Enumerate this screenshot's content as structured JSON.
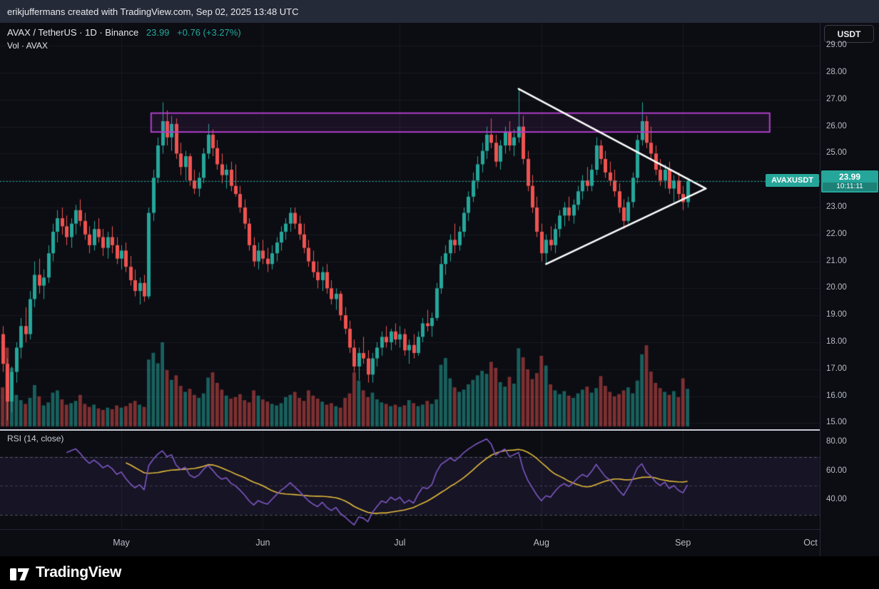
{
  "attribution": {
    "text": "erikjuffermans created with TradingView.com, Sep 02, 2025 13:48 UTC"
  },
  "header": {
    "symbol_line": "AVAX / TetherUS · 1D · Binance",
    "price": "23.99",
    "change": "+0.76 (+3.27%)",
    "vol_label": "Vol · AVAX",
    "currency_button": "USDT"
  },
  "footer": {
    "logo_text": "TradingView"
  },
  "colors": {
    "up": "#26a69a",
    "down": "#ef5350",
    "vol_up": "rgba(38,166,154,0.55)",
    "vol_down": "rgba(239,83,80,0.50)",
    "zone_purple": "#b03fc9",
    "zone_fill": "rgba(176,63,201,0.10)",
    "triangle_white": "#ffffff",
    "rsi_line": "#7e57c2",
    "rsi_ma": "#e3ba3c",
    "grid": "rgba(255,255,255,0.055)",
    "axis_text": "#b9bcc5"
  },
  "chart_data": {
    "type": "candlestick",
    "title": "AVAX / TetherUS · 1D · Binance",
    "symbol": "AVAXUSDT",
    "exchange": "Binance",
    "interval": "1D",
    "start_date": "2025-04-05",
    "end_date": "2025-09-02",
    "current_price": 23.99,
    "current_price_text": "23.99",
    "countdown": "10:11:11",
    "change_text": "+0.76 (+3.27%)",
    "price_axis": {
      "min": 15,
      "max": 29,
      "step": 1,
      "labels": [
        "29.00",
        "28.00",
        "27.00",
        "26.00",
        "25.00",
        "24.00",
        "23.00",
        "22.00",
        "21.00",
        "20.00",
        "19.00",
        "18.00",
        "17.00",
        "16.00",
        "15.00"
      ]
    },
    "time_axis": [
      {
        "label": "May",
        "index": 26
      },
      {
        "label": "Jun",
        "index": 57
      },
      {
        "label": "Jul",
        "index": 87
      },
      {
        "label": "Aug",
        "index": 118
      },
      {
        "label": "Sep",
        "index": 149
      },
      {
        "label": "Oct",
        "index": 179
      }
    ],
    "candles": [
      [
        18.3,
        18.6,
        16.9,
        17.2
      ],
      [
        17.2,
        17.4,
        15.1,
        15.8
      ],
      [
        15.8,
        17.1,
        15.4,
        16.9
      ],
      [
        16.9,
        18.0,
        16.5,
        17.8
      ],
      [
        17.8,
        18.9,
        17.4,
        18.6
      ],
      [
        18.6,
        19.3,
        18.0,
        18.3
      ],
      [
        18.3,
        19.9,
        18.1,
        19.6
      ],
      [
        19.6,
        21.0,
        19.3,
        20.5
      ],
      [
        20.5,
        21.1,
        19.8,
        20.1
      ],
      [
        20.1,
        20.7,
        19.6,
        20.4
      ],
      [
        20.4,
        21.6,
        20.2,
        21.3
      ],
      [
        21.3,
        22.4,
        21.0,
        22.1
      ],
      [
        22.1,
        22.9,
        21.7,
        22.6
      ],
      [
        22.6,
        23.0,
        22.0,
        22.3
      ],
      [
        22.3,
        22.7,
        21.6,
        21.9
      ],
      [
        21.9,
        22.6,
        21.5,
        22.4
      ],
      [
        22.4,
        23.1,
        22.0,
        22.9
      ],
      [
        22.9,
        23.3,
        22.3,
        22.5
      ],
      [
        22.5,
        22.8,
        21.8,
        22.0
      ],
      [
        22.0,
        22.3,
        21.3,
        21.6
      ],
      [
        21.6,
        22.5,
        21.4,
        22.2
      ],
      [
        22.2,
        22.6,
        21.7,
        21.9
      ],
      [
        21.9,
        22.2,
        21.2,
        21.5
      ],
      [
        21.5,
        22.1,
        21.1,
        21.9
      ],
      [
        21.9,
        22.3,
        21.3,
        21.6
      ],
      [
        21.6,
        21.9,
        20.9,
        21.1
      ],
      [
        21.1,
        21.6,
        20.7,
        21.4
      ],
      [
        21.4,
        21.7,
        20.6,
        20.8
      ],
      [
        20.8,
        21.2,
        20.1,
        20.3
      ],
      [
        20.3,
        20.7,
        19.7,
        19.9
      ],
      [
        19.9,
        20.4,
        19.4,
        20.2
      ],
      [
        20.2,
        20.5,
        19.5,
        19.7
      ],
      [
        19.7,
        23.0,
        19.6,
        22.8
      ],
      [
        22.8,
        24.4,
        22.5,
        24.1
      ],
      [
        24.1,
        25.6,
        23.9,
        25.3
      ],
      [
        25.3,
        26.9,
        25.0,
        26.2
      ],
      [
        26.2,
        26.6,
        25.3,
        25.6
      ],
      [
        25.6,
        26.4,
        25.1,
        26.1
      ],
      [
        26.1,
        26.3,
        24.8,
        25.0
      ],
      [
        25.0,
        25.4,
        24.2,
        24.5
      ],
      [
        24.5,
        25.1,
        24.0,
        24.9
      ],
      [
        24.9,
        25.0,
        23.8,
        24.0
      ],
      [
        24.0,
        24.4,
        23.5,
        23.7
      ],
      [
        23.7,
        24.3,
        23.4,
        24.1
      ],
      [
        24.1,
        25.2,
        23.9,
        25.0
      ],
      [
        25.0,
        26.1,
        24.8,
        25.7
      ],
      [
        25.7,
        25.9,
        24.9,
        25.2
      ],
      [
        25.2,
        25.5,
        24.4,
        24.6
      ],
      [
        24.6,
        25.0,
        23.9,
        24.2
      ],
      [
        24.2,
        24.6,
        23.7,
        24.4
      ],
      [
        24.4,
        24.7,
        23.6,
        23.8
      ],
      [
        23.8,
        24.6,
        23.4,
        23.5
      ],
      [
        23.5,
        23.8,
        22.8,
        23.0
      ],
      [
        23.0,
        23.3,
        22.2,
        22.4
      ],
      [
        22.4,
        22.6,
        21.4,
        21.6
      ],
      [
        21.6,
        21.9,
        20.8,
        21.0
      ],
      [
        21.0,
        21.7,
        20.7,
        21.4
      ],
      [
        21.4,
        21.8,
        20.9,
        21.1
      ],
      [
        21.1,
        21.5,
        20.6,
        20.9
      ],
      [
        20.9,
        21.6,
        20.7,
        21.3
      ],
      [
        21.3,
        21.9,
        21.0,
        21.7
      ],
      [
        21.7,
        22.3,
        21.4,
        22.1
      ],
      [
        22.1,
        22.6,
        21.8,
        22.4
      ],
      [
        22.4,
        23.0,
        22.1,
        22.8
      ],
      [
        22.8,
        23.0,
        22.2,
        22.4
      ],
      [
        22.4,
        22.7,
        21.8,
        22.0
      ],
      [
        22.0,
        22.4,
        21.3,
        21.5
      ],
      [
        21.5,
        21.8,
        20.8,
        21.0
      ],
      [
        21.0,
        21.4,
        20.4,
        20.6
      ],
      [
        20.6,
        21.0,
        20.0,
        20.3
      ],
      [
        20.3,
        20.8,
        19.9,
        20.6
      ],
      [
        20.6,
        20.9,
        19.8,
        20.0
      ],
      [
        20.0,
        20.3,
        19.4,
        19.6
      ],
      [
        19.6,
        20.0,
        19.2,
        19.8
      ],
      [
        19.8,
        19.9,
        18.8,
        19.0
      ],
      [
        19.0,
        19.3,
        18.3,
        18.5
      ],
      [
        18.5,
        18.8,
        17.6,
        17.8
      ],
      [
        17.8,
        18.1,
        16.9,
        17.1
      ],
      [
        17.1,
        17.8,
        16.6,
        17.6
      ],
      [
        17.6,
        18.2,
        17.2,
        17.4
      ],
      [
        17.4,
        17.7,
        16.5,
        16.8
      ],
      [
        16.8,
        17.6,
        16.5,
        17.4
      ],
      [
        17.4,
        18.0,
        17.1,
        17.8
      ],
      [
        17.8,
        18.4,
        17.5,
        18.2
      ],
      [
        18.2,
        18.6,
        17.8,
        18.0
      ],
      [
        18.0,
        18.5,
        17.7,
        18.4
      ],
      [
        18.4,
        18.7,
        17.9,
        18.1
      ],
      [
        18.1,
        18.6,
        17.8,
        18.3
      ],
      [
        18.3,
        18.5,
        17.5,
        17.7
      ],
      [
        17.7,
        18.1,
        17.2,
        17.9
      ],
      [
        17.9,
        18.3,
        17.4,
        17.6
      ],
      [
        17.6,
        18.4,
        17.5,
        18.2
      ],
      [
        18.2,
        18.9,
        18.0,
        18.7
      ],
      [
        18.7,
        19.2,
        18.4,
        18.6
      ],
      [
        18.6,
        19.1,
        18.2,
        18.9
      ],
      [
        18.9,
        20.2,
        18.8,
        20.0
      ],
      [
        20.0,
        21.2,
        19.8,
        20.9
      ],
      [
        20.9,
        21.6,
        20.5,
        21.3
      ],
      [
        21.3,
        22.0,
        21.0,
        21.8
      ],
      [
        21.8,
        22.4,
        21.3,
        21.6
      ],
      [
        21.6,
        22.3,
        21.4,
        22.1
      ],
      [
        22.1,
        23.0,
        21.9,
        22.8
      ],
      [
        22.8,
        23.6,
        22.5,
        23.4
      ],
      [
        23.4,
        24.3,
        23.2,
        24.0
      ],
      [
        24.0,
        24.9,
        23.7,
        24.6
      ],
      [
        24.6,
        25.4,
        24.3,
        25.1
      ],
      [
        25.1,
        26.0,
        24.8,
        25.7
      ],
      [
        25.7,
        26.3,
        25.2,
        25.4
      ],
      [
        25.4,
        25.7,
        24.5,
        24.7
      ],
      [
        24.7,
        25.5,
        24.4,
        25.3
      ],
      [
        25.3,
        26.0,
        25.0,
        25.8
      ],
      [
        25.8,
        26.2,
        25.1,
        25.3
      ],
      [
        25.3,
        25.9,
        24.9,
        25.6
      ],
      [
        25.6,
        27.4,
        25.4,
        26.0
      ],
      [
        26.0,
        26.4,
        24.6,
        24.8
      ],
      [
        24.8,
        25.1,
        23.6,
        23.8
      ],
      [
        23.8,
        24.2,
        22.8,
        23.0
      ],
      [
        23.0,
        23.4,
        21.9,
        22.1
      ],
      [
        22.1,
        22.4,
        21.0,
        21.3
      ],
      [
        21.3,
        22.0,
        20.9,
        21.8
      ],
      [
        21.8,
        22.3,
        21.4,
        21.6
      ],
      [
        21.6,
        22.4,
        21.3,
        22.2
      ],
      [
        22.2,
        22.9,
        21.9,
        22.7
      ],
      [
        22.7,
        23.2,
        22.3,
        23.0
      ],
      [
        23.0,
        23.4,
        22.5,
        22.7
      ],
      [
        22.7,
        23.3,
        22.4,
        23.1
      ],
      [
        23.1,
        23.8,
        22.9,
        23.6
      ],
      [
        23.6,
        24.2,
        23.3,
        24.0
      ],
      [
        24.0,
        24.5,
        23.6,
        23.8
      ],
      [
        23.8,
        24.6,
        23.6,
        24.4
      ],
      [
        24.4,
        25.6,
        24.2,
        25.3
      ],
      [
        25.3,
        25.5,
        24.6,
        24.8
      ],
      [
        24.8,
        25.1,
        24.1,
        24.3
      ],
      [
        24.3,
        24.7,
        23.8,
        24.0
      ],
      [
        24.0,
        24.4,
        23.4,
        23.6
      ],
      [
        23.6,
        23.9,
        22.8,
        23.0
      ],
      [
        23.0,
        23.3,
        22.2,
        22.5
      ],
      [
        22.5,
        23.4,
        22.4,
        23.2
      ],
      [
        23.2,
        24.3,
        23.0,
        24.1
      ],
      [
        24.1,
        25.7,
        23.9,
        25.5
      ],
      [
        25.5,
        26.9,
        25.3,
        26.2
      ],
      [
        26.2,
        26.4,
        25.2,
        25.4
      ],
      [
        25.4,
        26.0,
        24.8,
        25.0
      ],
      [
        25.0,
        25.3,
        24.2,
        24.4
      ],
      [
        24.4,
        24.8,
        23.8,
        24.0
      ],
      [
        24.0,
        24.6,
        23.7,
        24.4
      ],
      [
        24.4,
        24.7,
        23.5,
        23.7
      ],
      [
        23.7,
        24.2,
        23.2,
        24.0
      ],
      [
        24.0,
        24.3,
        23.3,
        23.5
      ],
      [
        23.5,
        23.8,
        22.9,
        23.2
      ],
      [
        23.2,
        24.1,
        23.0,
        23.99
      ]
    ],
    "volume": [
      5.2,
      10.5,
      7.8,
      4.2,
      3.5,
      3.0,
      3.8,
      5.5,
      4.0,
      2.8,
      3.2,
      4.5,
      4.8,
      3.6,
      2.9,
      3.1,
      3.4,
      4.2,
      3.0,
      2.6,
      2.9,
      2.4,
      2.2,
      2.5,
      2.3,
      2.8,
      2.5,
      2.7,
      3.1,
      3.4,
      2.9,
      2.6,
      8.9,
      9.8,
      8.4,
      11.2,
      7.5,
      6.2,
      6.8,
      5.4,
      4.6,
      5.0,
      4.2,
      3.8,
      4.4,
      6.5,
      7.2,
      5.8,
      4.9,
      4.1,
      3.7,
      3.9,
      4.3,
      3.5,
      3.2,
      4.8,
      4.1,
      3.6,
      3.3,
      3.0,
      2.8,
      3.1,
      3.9,
      4.2,
      4.6,
      3.8,
      3.4,
      4.8,
      4.1,
      3.7,
      3.3,
      2.9,
      3.1,
      2.7,
      2.5,
      3.8,
      4.4,
      7.2,
      6.1,
      4.8,
      3.9,
      4.5,
      3.6,
      3.2,
      3.0,
      2.7,
      2.9,
      2.6,
      2.8,
      3.5,
      3.1,
      2.7,
      2.9,
      3.4,
      3.0,
      3.6,
      8.2,
      9.1,
      6.4,
      5.2,
      4.6,
      4.9,
      5.6,
      6.2,
      6.8,
      7.4,
      7.0,
      8.6,
      7.8,
      5.9,
      5.3,
      6.6,
      5.7,
      10.4,
      9.2,
      7.6,
      6.3,
      7.1,
      9.4,
      8.1,
      5.6,
      4.8,
      4.3,
      4.7,
      4.1,
      3.8,
      4.4,
      4.9,
      5.3,
      4.5,
      5.1,
      6.7,
      5.4,
      4.6,
      4.0,
      4.3,
      4.8,
      5.2,
      4.4,
      6.1,
      9.6,
      10.8,
      7.3,
      5.8,
      5.1,
      4.6,
      4.2,
      4.7,
      3.9,
      6.4,
      5.0
    ],
    "annotations": {
      "resistance_zone": {
        "price_top": 26.5,
        "price_bottom": 25.8,
        "from_index": 33,
        "to_index": 168,
        "description": "purple resistance rectangle"
      },
      "triangle": {
        "upper": {
          "from": [
            113,
            27.4
          ],
          "to": [
            154,
            23.7
          ]
        },
        "lower": {
          "from": [
            119,
            20.9
          ],
          "to": [
            154,
            23.7
          ]
        },
        "description": "white symmetrical triangle"
      },
      "price_line": {
        "price": 23.99,
        "style": "dotted"
      }
    },
    "rsi": {
      "label": "RSI (14, close)",
      "length": 14,
      "source": "close",
      "axis_labels": [
        "80.00",
        "60.00",
        "40.00"
      ],
      "guides": [
        70,
        50,
        30
      ],
      "range_hint": [
        20,
        88
      ]
    }
  }
}
